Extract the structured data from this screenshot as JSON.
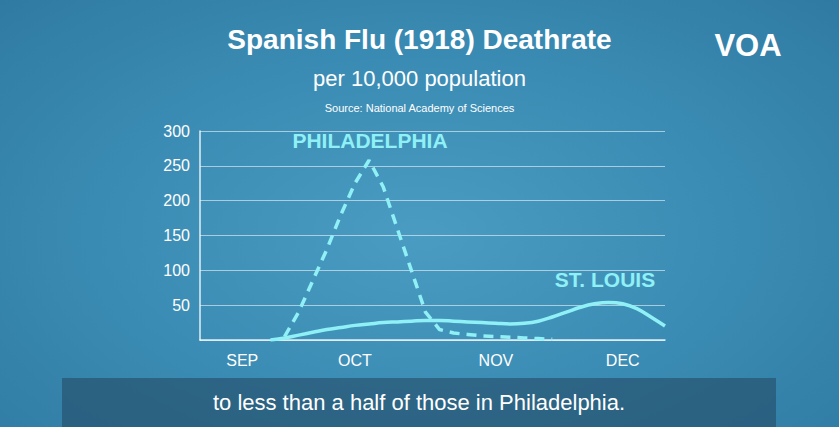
{
  "chart_data": {
    "type": "line",
    "title": "Spanish Flu (1918) Deathrate",
    "subtitle": "per 10,000 population",
    "source": "Source: National Academy of Sciences",
    "logo": "VOA",
    "caption": "to less than a half of those in Philadelphia.",
    "categories": [
      null,
      null,
      null,
      "SEP",
      null,
      null,
      null,
      null,
      null,
      null,
      null,
      "OCT",
      null,
      null,
      null,
      null,
      null,
      null,
      null,
      null,
      null,
      "NOV",
      null,
      null,
      null,
      null,
      null,
      null,
      null,
      null,
      "DEC",
      null,
      null,
      null
    ],
    "series": [
      {
        "name": "PHILADELPHIA",
        "color": "#8ff0f5",
        "line_style": "dashed",
        "values": [
          null,
          null,
          null,
          null,
          null,
          null,
          5,
          40,
          85,
          130,
          180,
          225,
          258,
          220,
          160,
          100,
          40,
          15,
          10,
          8,
          6,
          5,
          4,
          3,
          2,
          1,
          null,
          null,
          null,
          null,
          null,
          null,
          null,
          null
        ]
      },
      {
        "name": "ST. LOUIS",
        "color": "#8ff0f5",
        "line_style": "solid",
        "values": [
          null,
          null,
          null,
          null,
          null,
          0,
          3,
          7,
          11,
          15,
          18,
          21,
          23,
          25,
          26,
          27,
          28,
          28,
          27,
          26,
          25,
          24,
          23,
          24,
          27,
          33,
          40,
          47,
          52,
          54,
          52,
          45,
          33,
          20
        ]
      }
    ],
    "ylim": [
      0,
      300
    ],
    "yticks": [
      50,
      100,
      150,
      200,
      250,
      300
    ],
    "grid": true
  }
}
